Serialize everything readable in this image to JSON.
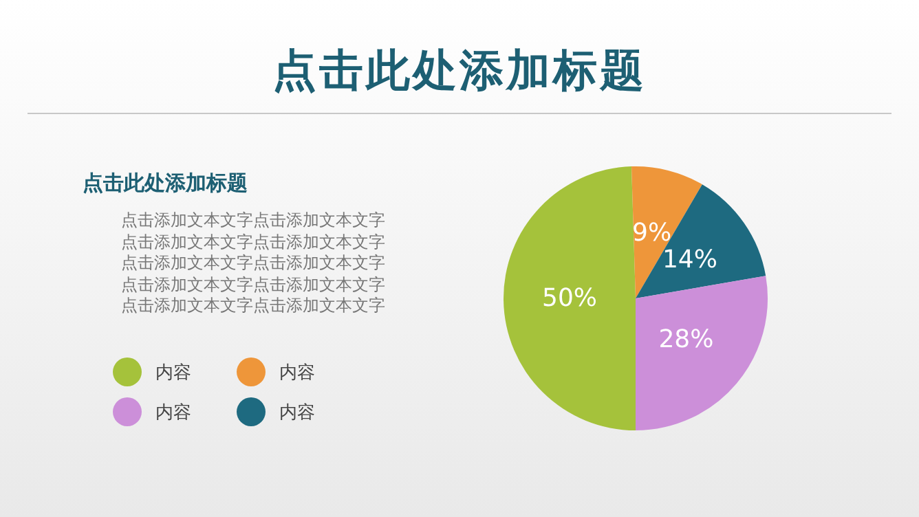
{
  "chart_data": {
    "type": "pie",
    "title": "点击此处添加标题",
    "subtitle": "点击此处添加标题",
    "annotations": [
      "点击添加文本文字点击添加文本文字",
      "点击添加文本文字点击添加文本文字",
      "点击添加文本文字点击添加文本文字",
      "点击添加文本文字点击添加文本文字",
      "点击添加文本文字点击添加文本文字"
    ],
    "categories": [
      "内容",
      "内容",
      "内容",
      "内容"
    ],
    "values": [
      50,
      9,
      14,
      28
    ],
    "colors": [
      "#a5c23b",
      "#ee963a",
      "#1e6a80",
      "#cc8fd9"
    ],
    "value_labels": [
      "50%",
      "9%",
      "14%",
      "28%"
    ],
    "legend": "left"
  }
}
